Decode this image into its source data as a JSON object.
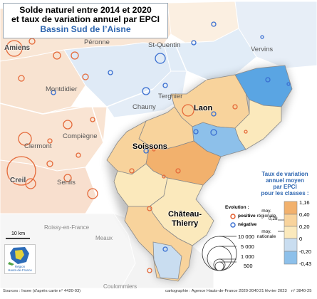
{
  "title": {
    "line1": "Solde naturel entre 2014 et 2020",
    "line2": "et taux de variation annuel par EPCI",
    "line3": "Bassin Sud de l’Aisne"
  },
  "places": {
    "amiens": "Amiens",
    "peronne": "Péronne",
    "st_quentin": "St-Quentin",
    "vervins": "Vervins",
    "montdidier": "Montdidier",
    "tergnier": "Tergnier",
    "chauny": "Chauny",
    "laon": "Laon",
    "compiegne": "Compiègne",
    "clermont": "Clermont",
    "soissons": "Soissons",
    "creil": "Creil",
    "senlis": "Senlis",
    "chateau_line1": "Château-",
    "chateau_line2": "Thierry",
    "roissy": "Roissy-en-France",
    "meaux": "Meaux",
    "coulommiers": "Coulommiers"
  },
  "legend": {
    "title_line1": "Taux de variation",
    "title_line2": "annuel moyen",
    "title_line3": "par EPCI",
    "title_line4": "pour les classes :",
    "breaks": [
      "1,16",
      "0,40",
      "0,20",
      "0",
      "-0,20",
      "-0,43"
    ],
    "regional_line1": "moy.",
    "regional_line2": "régionale",
    "regional_value": "0,28",
    "national_line1": "moy.",
    "national_line2": "nationale",
    "class_colors": [
      "#f2b16d",
      "#f8d39c",
      "#fbe9bc",
      "#c9ddf0",
      "#8dc0ea"
    ]
  },
  "evolution": {
    "title": "Evolution :",
    "positive": "positive",
    "negative": "négative",
    "positive_color": "#e25a2a",
    "negative_color": "#3a6fd1"
  },
  "circle_sizes": [
    "10 000",
    "5 000",
    "1 000",
    "500"
  ],
  "scale_bar": "10 km",
  "logo_text_line1": "Région",
  "logo_text_line2": "Hauts-de-France",
  "footer": {
    "sources": "Sources : Insee (d'après carte n° 4420-03)",
    "cartography": "cartographie : Agence Hauts-de-France 2020-2040",
    "date": "21 février 2023",
    "ref": "n° 3840-25"
  }
}
